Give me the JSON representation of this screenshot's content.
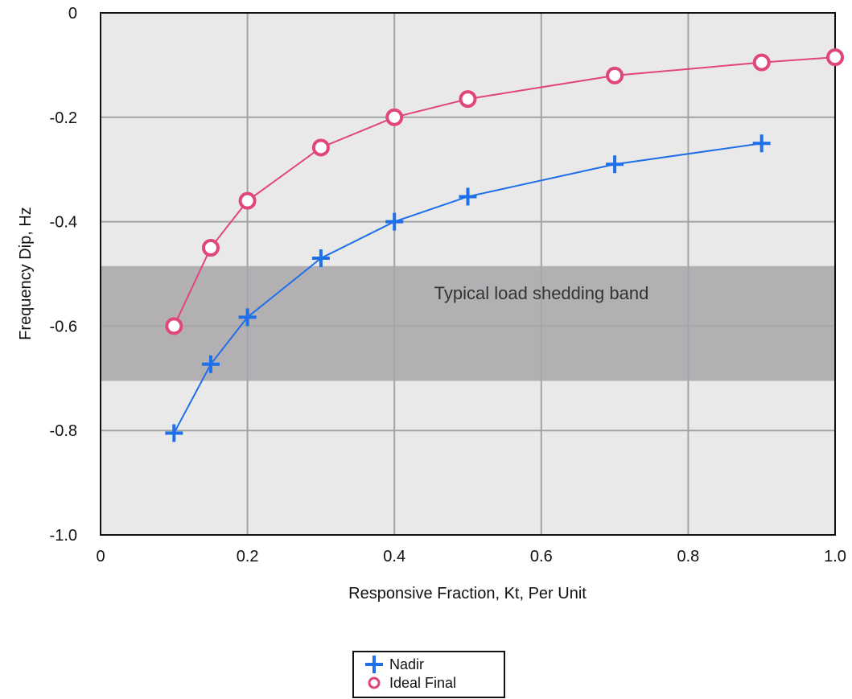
{
  "chart_data": {
    "type": "line",
    "xlabel": "Responsive Fraction, Kt, Per Unit",
    "ylabel": "Frequency Dip, Hz",
    "xlim": [
      0,
      1.0
    ],
    "ylim": [
      -1.0,
      0
    ],
    "x_ticks": [
      "0",
      "0.2",
      "0.4",
      "0.6",
      "0.8",
      "1.0"
    ],
    "x_tick_values": [
      0,
      0.2,
      0.4,
      0.6,
      0.8,
      1.0
    ],
    "y_ticks": [
      "0",
      "-0.2",
      "-0.4",
      "-0.6",
      "-0.8",
      "-1.0"
    ],
    "y_tick_values": [
      0,
      -0.2,
      -0.4,
      -0.6,
      -0.8,
      -1.0
    ],
    "grid": true,
    "legend_position": "bottom-center",
    "band": {
      "label": "Typical load shedding band",
      "y_range": [
        -0.705,
        -0.485
      ],
      "color": "#a9a6aa"
    },
    "plot_background": "#e9e9e9",
    "series": [
      {
        "name": "Nadir",
        "marker": "plus",
        "color": "#1f6fe8",
        "x": [
          0.1,
          0.15,
          0.2,
          0.3,
          0.4,
          0.5,
          0.7,
          0.9
        ],
        "y": [
          -0.805,
          -0.673,
          -0.583,
          -0.47,
          -0.4,
          -0.352,
          -0.29,
          -0.25
        ]
      },
      {
        "name": "Ideal Final",
        "marker": "circle",
        "color": "#e0457b",
        "x": [
          0.1,
          0.15,
          0.2,
          0.3,
          0.4,
          0.5,
          0.7,
          0.9,
          1.0
        ],
        "y": [
          -0.6,
          -0.45,
          -0.36,
          -0.258,
          -0.2,
          -0.165,
          -0.12,
          -0.095,
          -0.085
        ]
      }
    ]
  }
}
